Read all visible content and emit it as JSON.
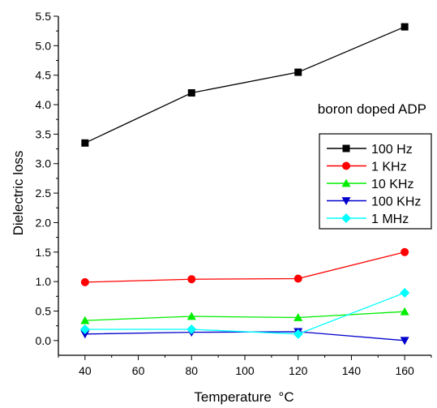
{
  "chart_data": {
    "type": "line",
    "annotation": "boron doped ADP",
    "xlabel": "Temperature",
    "xlabel_unit": "°C",
    "ylabel": "Dielectric loss",
    "xlim": [
      30,
      170
    ],
    "ylim": [
      -0.25,
      5.5
    ],
    "xticks": [
      40,
      60,
      80,
      100,
      120,
      140,
      160
    ],
    "yticks": [
      0.0,
      0.5,
      1.0,
      1.5,
      2.0,
      2.5,
      3.0,
      3.5,
      4.0,
      4.5,
      5.0,
      5.5
    ],
    "x": [
      40,
      80,
      120,
      160
    ],
    "grid": false,
    "legend_position": "right",
    "series": [
      {
        "name": "100 Hz",
        "color": "#000000",
        "marker": "square",
        "values": [
          3.35,
          4.2,
          4.55,
          5.32
        ]
      },
      {
        "name": "1 KHz",
        "color": "#ff0000",
        "marker": "circle",
        "values": [
          0.99,
          1.04,
          1.05,
          1.5
        ]
      },
      {
        "name": "10 KHz",
        "color": "#00ee00",
        "marker": "triangle-up",
        "values": [
          0.34,
          0.41,
          0.39,
          0.49
        ]
      },
      {
        "name": "100 KHz",
        "color": "#0000cc",
        "marker": "triangle-down",
        "values": [
          0.11,
          0.14,
          0.15,
          0.0
        ]
      },
      {
        "name": "1 MHz",
        "color": "#00ffff",
        "marker": "diamond",
        "values": [
          0.19,
          0.19,
          0.11,
          0.81
        ]
      }
    ]
  }
}
